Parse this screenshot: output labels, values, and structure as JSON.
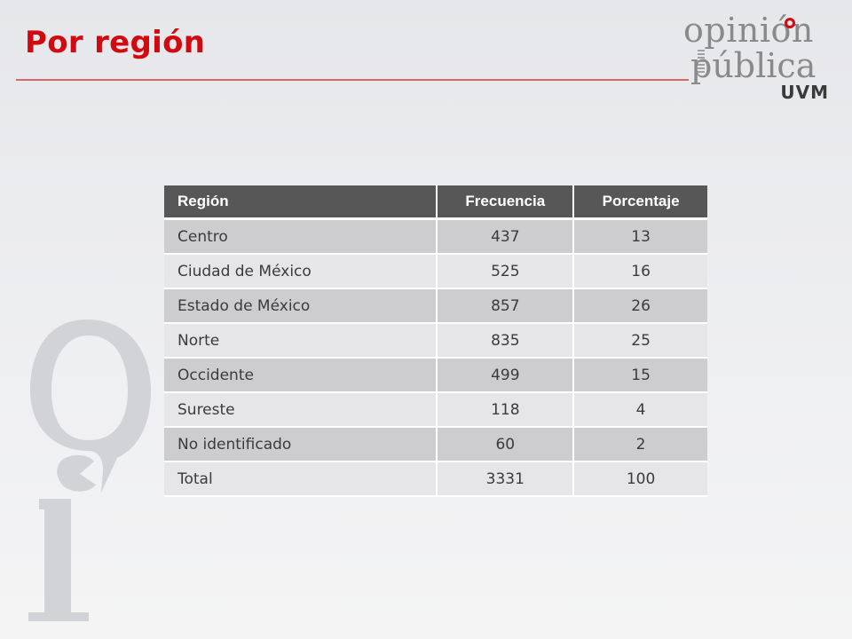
{
  "slide": {
    "title": "Por región",
    "accent_color": "#d10a11"
  },
  "logo": {
    "line1": "opinión",
    "line2": "pública",
    "brand": "UVM"
  },
  "table": {
    "headers": [
      "Región",
      "Frecuencia",
      "Porcentaje"
    ],
    "rows": [
      [
        "Centro",
        "437",
        "13"
      ],
      [
        "Ciudad de México",
        "525",
        "16"
      ],
      [
        "Estado de México",
        "857",
        "26"
      ],
      [
        "Norte",
        "835",
        "25"
      ],
      [
        "Occidente",
        "499",
        "15"
      ],
      [
        "Sureste",
        "118",
        "4"
      ],
      [
        "No identificado",
        "60",
        "2"
      ],
      [
        "Total",
        "3331",
        "100"
      ]
    ]
  }
}
